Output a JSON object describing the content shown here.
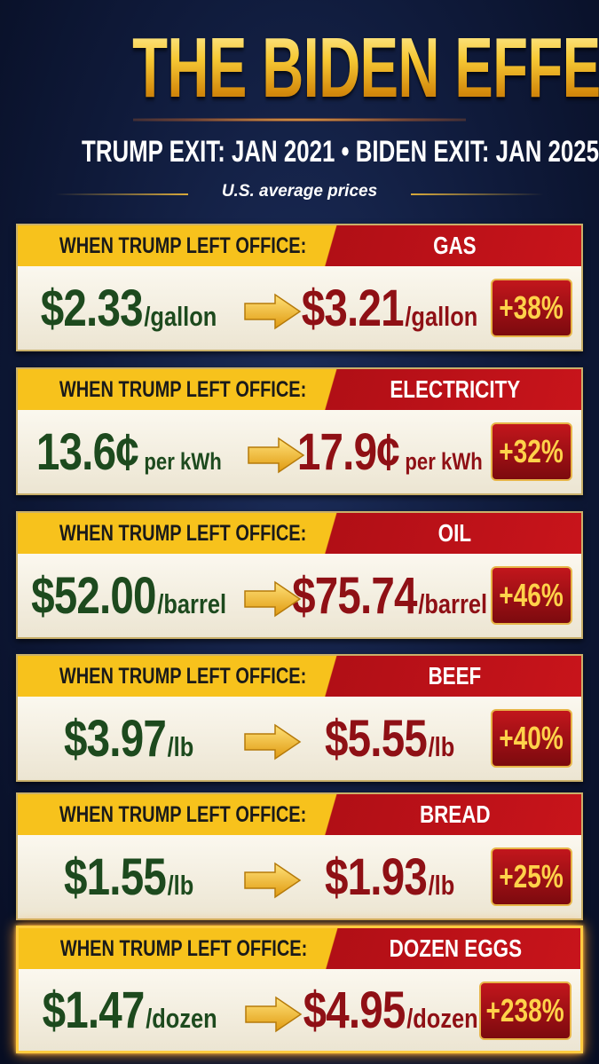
{
  "header": {
    "title": "THE BIDEN EFFECT!",
    "subtitle": "TRUMP EXIT: JAN 2021 • BIDEN EXIT: JAN 2025",
    "note": "U.S. average prices"
  },
  "cards": [
    {
      "label": "WHEN TRUMP LEFT OFFICE:",
      "item": "GAS",
      "before": {
        "amount": "$2.33",
        "unit": "/gallon"
      },
      "after": {
        "amount": "$3.21",
        "unit": "/gallon"
      },
      "change": "+38%"
    },
    {
      "label": "WHEN TRUMP LEFT OFFICE:",
      "item": "ELECTRICITY",
      "before": {
        "amount": "13.6¢",
        "unit": "per kWh"
      },
      "after": {
        "amount": "17.9¢",
        "unit": "per kWh"
      },
      "change": "+32%"
    },
    {
      "label": "WHEN TRUMP LEFT OFFICE:",
      "item": "OIL",
      "before": {
        "amount": "$52.00",
        "unit": "/barrel"
      },
      "after": {
        "amount": "$75.74",
        "unit": "/barrel"
      },
      "change": "+46%"
    },
    {
      "label": "WHEN TRUMP LEFT OFFICE:",
      "item": "BEEF",
      "before": {
        "amount": "$3.97",
        "unit": "/lb"
      },
      "after": {
        "amount": "$5.55",
        "unit": "/lb"
      },
      "change": "+40%"
    },
    {
      "label": "WHEN TRUMP LEFT OFFICE:",
      "item": "BREAD",
      "before": {
        "amount": "$1.55",
        "unit": "/lb"
      },
      "after": {
        "amount": "$1.93",
        "unit": "/lb"
      },
      "change": "+25%"
    },
    {
      "label": "WHEN TRUMP LEFT OFFICE:",
      "item": "DOZEN EGGS",
      "before": {
        "amount": "$1.47",
        "unit": "/dozen"
      },
      "after": {
        "amount": "$4.95",
        "unit": "/dozen"
      },
      "change": "+238%"
    }
  ]
}
